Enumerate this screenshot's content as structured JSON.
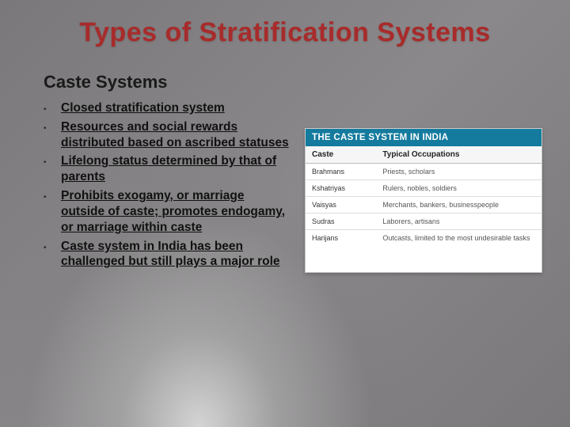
{
  "title": "Types of Stratification Systems",
  "subtitle": "Caste Systems",
  "bullets": {
    "b0": "Closed stratification system",
    "b1": "Resources and social rewards distributed based on ascribed statuses",
    "b2": "Lifelong status determined by that of parents",
    "b3_a": "Prohibits ",
    "b3_b": "exogamy",
    "b3_c": ", or marriage outside of caste; promotes ",
    "b3_d": "endogamy",
    "b3_e": ", or marriage within caste",
    "b4_a": "Caste system",
    "b4_b": " in India has been challenged but still plays a major role"
  },
  "table": {
    "header": "THE CASTE SYSTEM IN INDIA",
    "col1": "Caste",
    "col2": "Typical Occupations",
    "r0c0": "Brahmans",
    "r0c1": "Priests, scholars",
    "r1c0": "Kshatriyas",
    "r1c1": "Rulers, nobles, soldiers",
    "r2c0": "Vaisyas",
    "r2c1": "Merchants, bankers, businesspeople",
    "r3c0": "Sudras",
    "r3c1": "Laborers, artisans",
    "r4c0": "Harijans",
    "r4c1": "Outcasts, limited to the most undesirable tasks"
  },
  "colors": {
    "title": "#a82b2b",
    "table_header_bg": "#147b9e"
  }
}
